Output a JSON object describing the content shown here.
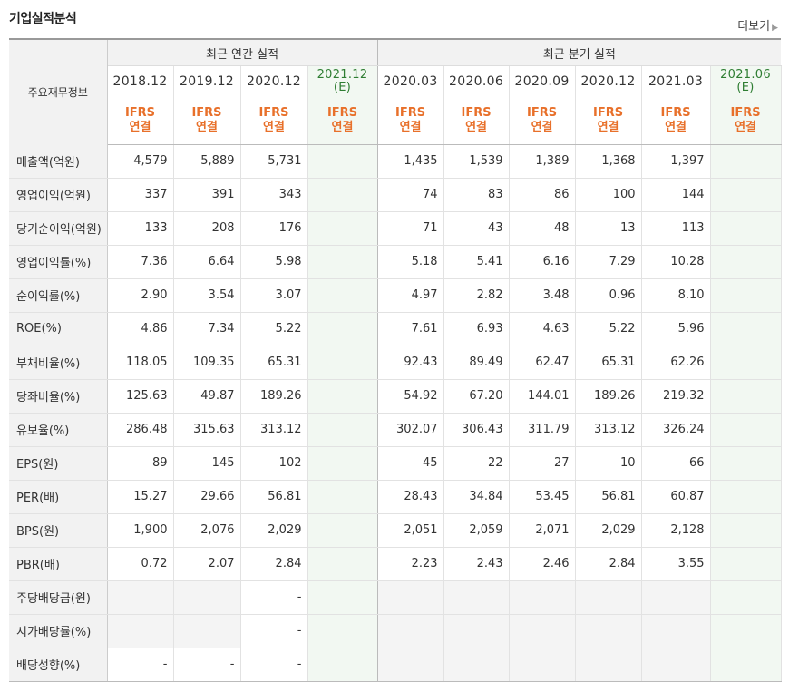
{
  "title": "기업실적분석",
  "more_label": "더보기",
  "header": {
    "corner": "주요재무정보",
    "annual_group": "최근 연간 실적",
    "quarterly_group": "최근 분기 실적",
    "periods": [
      {
        "line1": "2018.12",
        "line2": ""
      },
      {
        "line1": "2019.12",
        "line2": ""
      },
      {
        "line1": "2020.12",
        "line2": ""
      },
      {
        "line1": "2021.12",
        "line2": "(E)"
      },
      {
        "line1": "2020.03",
        "line2": ""
      },
      {
        "line1": "2020.06",
        "line2": ""
      },
      {
        "line1": "2020.09",
        "line2": ""
      },
      {
        "line1": "2020.12",
        "line2": ""
      },
      {
        "line1": "2021.03",
        "line2": ""
      },
      {
        "line1": "2021.06",
        "line2": "(E)"
      }
    ],
    "basis_line1": "IFRS",
    "basis_line2": "연결"
  },
  "rows": [
    {
      "label": "매출액(억원)",
      "values": [
        "4,579",
        "5,889",
        "5,731",
        "",
        "1,435",
        "1,539",
        "1,389",
        "1,368",
        "1,397",
        ""
      ]
    },
    {
      "label": "영업이익(억원)",
      "values": [
        "337",
        "391",
        "343",
        "",
        "74",
        "83",
        "86",
        "100",
        "144",
        ""
      ]
    },
    {
      "label": "당기순이익(억원)",
      "values": [
        "133",
        "208",
        "176",
        "",
        "71",
        "43",
        "48",
        "13",
        "113",
        ""
      ]
    },
    {
      "label": "영업이익률(%)",
      "values": [
        "7.36",
        "6.64",
        "5.98",
        "",
        "5.18",
        "5.41",
        "6.16",
        "7.29",
        "10.28",
        ""
      ]
    },
    {
      "label": "순이익률(%)",
      "values": [
        "2.90",
        "3.54",
        "3.07",
        "",
        "4.97",
        "2.82",
        "3.48",
        "0.96",
        "8.10",
        ""
      ]
    },
    {
      "label": "ROE(%)",
      "values": [
        "4.86",
        "7.34",
        "5.22",
        "",
        "7.61",
        "6.93",
        "4.63",
        "5.22",
        "5.96",
        ""
      ]
    },
    {
      "label": "부채비율(%)",
      "values": [
        "118.05",
        "109.35",
        "65.31",
        "",
        "92.43",
        "89.49",
        "62.47",
        "65.31",
        "62.26",
        ""
      ]
    },
    {
      "label": "당좌비율(%)",
      "values": [
        "125.63",
        "49.87",
        "189.26",
        "",
        "54.92",
        "67.20",
        "144.01",
        "189.26",
        "219.32",
        ""
      ]
    },
    {
      "label": "유보율(%)",
      "values": [
        "286.48",
        "315.63",
        "313.12",
        "",
        "302.07",
        "306.43",
        "311.79",
        "313.12",
        "326.24",
        ""
      ]
    },
    {
      "label": "EPS(원)",
      "values": [
        "89",
        "145",
        "102",
        "",
        "45",
        "22",
        "27",
        "10",
        "66",
        ""
      ]
    },
    {
      "label": "PER(배)",
      "values": [
        "15.27",
        "29.66",
        "56.81",
        "",
        "28.43",
        "34.84",
        "53.45",
        "56.81",
        "60.87",
        ""
      ]
    },
    {
      "label": "BPS(원)",
      "values": [
        "1,900",
        "2,076",
        "2,029",
        "",
        "2,051",
        "2,059",
        "2,071",
        "2,029",
        "2,128",
        ""
      ]
    },
    {
      "label": "PBR(배)",
      "values": [
        "0.72",
        "2.07",
        "2.84",
        "",
        "2.23",
        "2.43",
        "2.46",
        "2.84",
        "3.55",
        ""
      ]
    },
    {
      "label": "주당배당금(원)",
      "values": [
        "",
        "",
        "-",
        "",
        "",
        "",
        "",
        "",
        "",
        ""
      ]
    },
    {
      "label": "시가배당률(%)",
      "values": [
        "",
        "",
        "-",
        "",
        "",
        "",
        "",
        "",
        "",
        ""
      ]
    },
    {
      "label": "배당성향(%)",
      "values": [
        "-",
        "-",
        "-",
        "",
        "",
        "",
        "",
        "",
        "",
        ""
      ]
    }
  ]
}
